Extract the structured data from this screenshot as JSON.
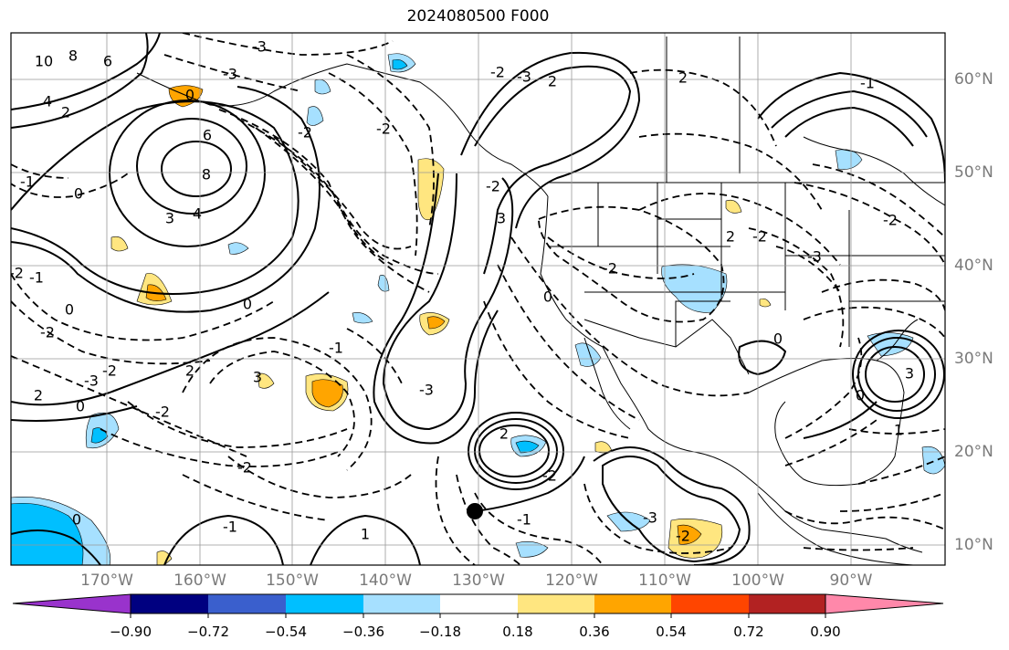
{
  "title": "2024080500 F000",
  "longitude_labels": [
    "170°W",
    "160°W",
    "150°W",
    "140°W",
    "130°W",
    "120°W",
    "110°W",
    "100°W",
    "90°W"
  ],
  "latitude_labels": [
    "60°N",
    "50°N",
    "40°N",
    "30°N",
    "20°N",
    "10°N"
  ],
  "colorbar": {
    "tick_labels": [
      "−0.90",
      "−0.72",
      "−0.54",
      "−0.36",
      "−0.18",
      "0.18",
      "0.36",
      "0.54",
      "0.72",
      "0.90"
    ],
    "colors": [
      "#9933cc",
      "#000080",
      "#3a5fcd",
      "#00bfff",
      "#a6e0ff",
      "#ffffff",
      "#ffe680",
      "#ffa500",
      "#ff4500",
      "#b22222",
      "#ff88aa"
    ]
  },
  "contour_labels": [
    "10",
    "8",
    "6",
    "4",
    "2",
    "8",
    "6",
    "-1",
    "0",
    "3",
    "4",
    "-2",
    "-1",
    "0",
    "-2",
    "2",
    "0",
    "0",
    "3",
    "-2",
    "-3",
    "-2",
    "-1",
    "-2",
    "2",
    "-3",
    "0",
    "-3",
    "-2",
    "-2",
    "2",
    "-2",
    "-3",
    "3",
    "-2",
    "-2",
    "-3",
    "2",
    "0",
    "-2",
    "0",
    "-3",
    "2",
    "-3",
    "-2",
    "-1",
    "-1",
    "0",
    "1",
    "-2",
    "3",
    "-1",
    "2",
    "-2",
    "0",
    "1"
  ],
  "marker": "black-dot"
}
